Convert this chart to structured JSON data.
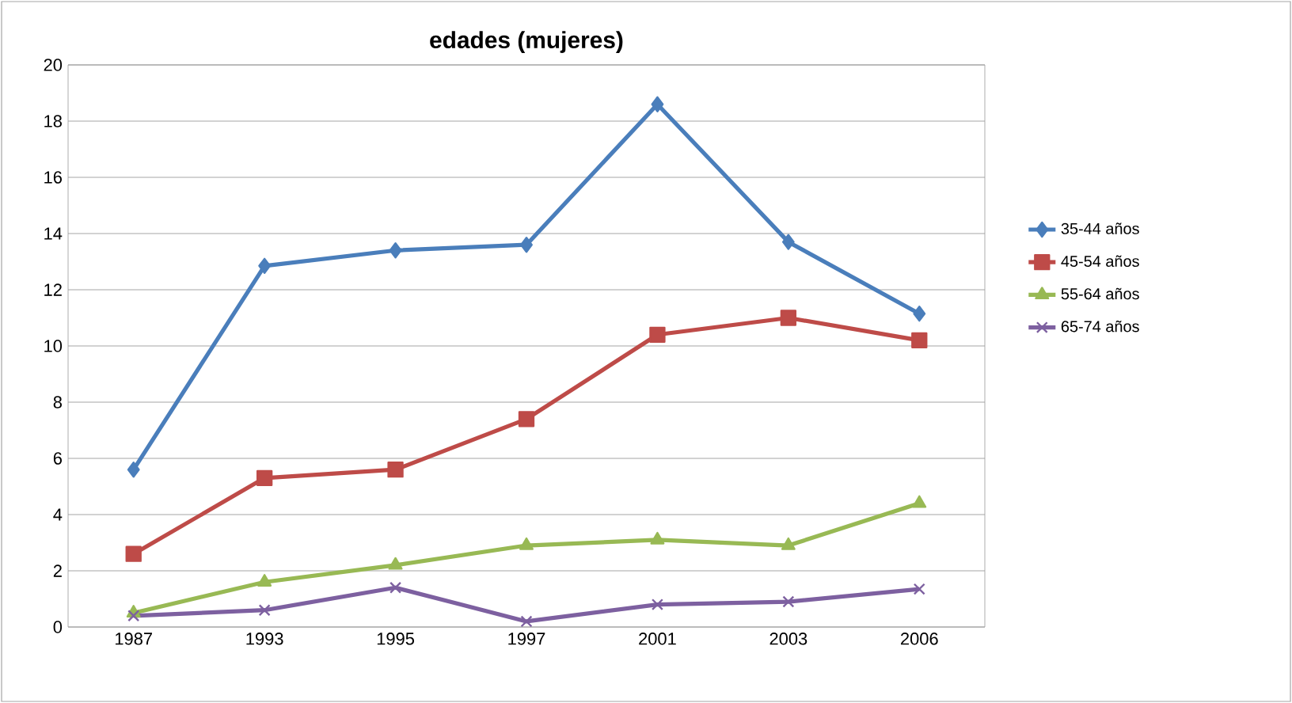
{
  "chart_data": {
    "type": "line",
    "title": "edades (mujeres)",
    "categories": [
      "1987",
      "1993",
      "1995",
      "1997",
      "2001",
      "2003",
      "2006"
    ],
    "series": [
      {
        "name": "35-44 años",
        "color": "#4a7ebb",
        "marker": "diamond",
        "values": [
          5.6,
          12.85,
          13.4,
          13.6,
          18.6,
          13.7,
          11.15
        ]
      },
      {
        "name": "45-54 años",
        "color": "#be4b48",
        "marker": "square",
        "values": [
          2.6,
          5.3,
          5.6,
          7.4,
          10.4,
          11.0,
          10.2
        ]
      },
      {
        "name": "55-64 años",
        "color": "#98b954",
        "marker": "triangle",
        "values": [
          0.5,
          1.6,
          2.2,
          2.9,
          3.1,
          2.9,
          4.4
        ]
      },
      {
        "name": "65-74 años",
        "color": "#7d60a0",
        "marker": "cross",
        "values": [
          0.4,
          0.6,
          1.4,
          0.2,
          0.8,
          0.9,
          1.35
        ]
      }
    ],
    "ylim": [
      0,
      20
    ],
    "yticks": [
      0,
      2,
      4,
      6,
      8,
      10,
      12,
      14,
      16,
      18,
      20
    ],
    "grid": "y",
    "legend": "right",
    "line_style": "solid"
  }
}
